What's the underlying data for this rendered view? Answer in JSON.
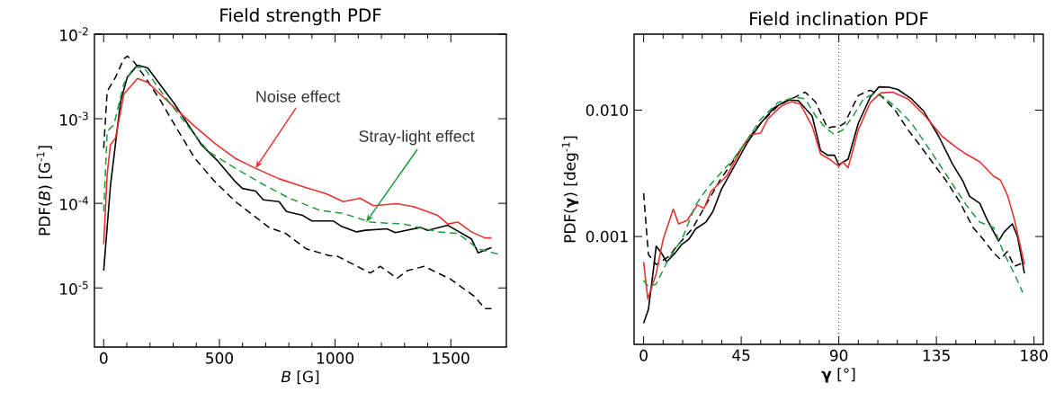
{
  "chart_data": [
    {
      "type": "line",
      "title": "Field strength PDF",
      "xlabel": "*B* [G]",
      "ylabel": "PDF(*B*) [G$^{-1}$]",
      "log": "y",
      "xlim": [
        -40,
        1740
      ],
      "xticks": [
        0,
        500,
        1000,
        1500
      ],
      "ylim": [
        2e-06,
        0.01
      ],
      "yticks": [
        {
          "value": 0.01,
          "label": "10$^{-2}$"
        },
        {
          "value": 0.001,
          "label": "10$^{-3}$"
        },
        {
          "value": 0.0001,
          "label": "10$^{-4}$"
        },
        {
          "value": 1e-05,
          "label": "10$^{-5}$"
        }
      ],
      "annotations": [
        {
          "text": "Noise effect",
          "x": 656,
          "y": 0.00026
        },
        {
          "text": "Stray-light effect",
          "x": 1134,
          "y": 6e-05
        }
      ],
      "series": [
        {
          "color": "#000000",
          "line_style": "solid",
          "x": [
            0,
            29,
            73,
            102,
            146,
            190,
            306,
            423,
            496,
            569,
            600,
            656,
            690,
            758,
            790,
            860,
            900,
            991,
            1030,
            1093,
            1130,
            1224,
            1260,
            1370,
            1400,
            1487,
            1589,
            1618,
            1676
          ],
          "values": [
            1.6e-05,
            0.00016,
            0.0016,
            0.0031,
            0.0043,
            0.004,
            0.0015,
            0.00049,
            0.00031,
            0.00018,
            0.00015,
            0.00014,
            0.00011,
            0.000105,
            8e-05,
            7.2e-05,
            6.2e-05,
            6.2e-05,
            5.3e-05,
            4.6e-05,
            4.8e-05,
            5e-05,
            4.5e-05,
            5.2e-05,
            4.8e-05,
            5.5e-05,
            3.8e-05,
            2.6e-05,
            3e-05
          ]
        },
        {
          "color": "#000000",
          "line_style": "dashed",
          "x": [
            0,
            15,
            51,
            87,
            102,
            131,
            190,
            248,
            306,
            394,
            481,
            569,
            656,
            714,
            787,
            875,
            977,
            1006,
            1152,
            1195,
            1268,
            1312,
            1385,
            1501,
            1603,
            1647,
            1676
          ],
          "values": [
            0.00045,
            0.0021,
            0.0031,
            0.0051,
            0.0055,
            0.0047,
            0.0028,
            0.0016,
            0.00085,
            0.00034,
            0.00018,
            0.000105,
            6.9e-05,
            5.2e-05,
            4.4e-05,
            2.9e-05,
            2.4e-05,
            2.4e-05,
            1.5e-05,
            1.8e-05,
            1.3e-05,
            1.6e-05,
            1.8e-05,
            1.26e-05,
            7.9e-06,
            5.7e-06,
            5.7e-06
          ]
        },
        {
          "color": "#e8312f",
          "line_style": "solid",
          "x": [
            0,
            15,
            29,
            51,
            87,
            146,
            190,
            306,
            394,
            481,
            569,
            656,
            758,
            860,
            962,
            1035,
            1108,
            1166,
            1268,
            1341,
            1443,
            1487,
            1531,
            1589,
            1647,
            1676
          ],
          "values": [
            3.3e-05,
            0.00022,
            0.00049,
            0.00059,
            0.00195,
            0.003,
            0.0027,
            0.00135,
            0.00081,
            0.00051,
            0.00034,
            0.00026,
            0.000195,
            0.000158,
            0.00013,
            0.000105,
            0.000115,
            9.4e-05,
            9.9e-05,
            9.1e-05,
            7.2e-05,
            5.7e-05,
            6e-05,
            4.6e-05,
            3.9e-05,
            3.9e-05
          ]
        },
        {
          "color": "#1e9a3c",
          "line_style": "dashed",
          "x": [
            0,
            15,
            44,
            87,
            131,
            175,
            248,
            335,
            452,
            569,
            685,
            802,
            933,
            1035,
            1152,
            1297,
            1443,
            1531,
            1618,
            1706
          ],
          "values": [
            8e-05,
            0.00071,
            0.00085,
            0.0026,
            0.0041,
            0.004,
            0.0021,
            0.00103,
            0.00041,
            0.00026,
            0.00017,
            0.000115,
            8.3e-05,
            7.6e-05,
            6e-05,
            5.7e-05,
            4.6e-05,
            4.4e-05,
            2.9e-05,
            2.5e-05
          ]
        }
      ]
    },
    {
      "type": "line",
      "title": "Field inclination PDF",
      "xlabel": "**γ** [°]",
      "ylabel": "PDF(**γ**) [deg$^{-1}$]",
      "log": "y",
      "xlim": [
        -4.4,
        184.3
      ],
      "xticks": [
        0,
        45,
        90,
        135,
        180
      ],
      "ylim": [
        0.00014,
        0.04
      ],
      "yticks": [
        {
          "value": 0.01,
          "label": "0.010"
        },
        {
          "value": 0.001,
          "label": "0.001"
        }
      ],
      "ref_lines": [
        {
          "axis": "x",
          "value": 90,
          "line_style": "dotted",
          "color": "#000000"
        }
      ],
      "series": [
        {
          "color": "#000000",
          "line_style": "solid",
          "x": [
            0,
            2.2,
            4.3,
            5.8,
            8.2,
            10.6,
            14.5,
            17.7,
            20.8,
            24,
            28.7,
            31.9,
            35.8,
            41.4,
            47.7,
            54,
            60.3,
            66.6,
            71.4,
            77.7,
            81.6,
            84.8,
            88,
            90,
            94.3,
            99,
            104.5,
            108.5,
            113.2,
            117.2,
            123.5,
            129,
            136.1,
            142.4,
            147.2,
            150.3,
            155,
            158.2,
            163.7,
            166.1,
            170,
            172.4,
            175.6
          ],
          "values": [
            0.000206,
            0.000265,
            0.00051,
            0.00084,
            0.00074,
            0.00063,
            0.00074,
            0.00087,
            0.00095,
            0.00115,
            0.0013,
            0.00157,
            0.00235,
            0.0035,
            0.0055,
            0.0079,
            0.0105,
            0.0121,
            0.0119,
            0.009,
            0.0048,
            0.0044,
            0.0044,
            0.0037,
            0.0041,
            0.0079,
            0.0127,
            0.0153,
            0.0152,
            0.0146,
            0.0123,
            0.0099,
            0.0062,
            0.00375,
            0.00275,
            0.00208,
            0.00183,
            0.00138,
            0.00092,
            0.00108,
            0.00126,
            0.001,
            0.00051
          ]
        },
        {
          "color": "#000000",
          "line_style": "dashed",
          "x": [
            0,
            2.2,
            5.8,
            11.4,
            16.1,
            22.4,
            28.7,
            35,
            41.4,
            47.7,
            54,
            61.9,
            68.2,
            74.5,
            79.3,
            84.8,
            87.2,
            90,
            92.7,
            99,
            104.5,
            109.3,
            115.6,
            121.9,
            126.6,
            133,
            139.3,
            145.6,
            151.9,
            156.6,
            161.4,
            164.5,
            167.7,
            170.9,
            174
          ],
          "values": [
            0.0022,
            0.00072,
            0.0006,
            0.00069,
            0.00087,
            0.00115,
            0.00178,
            0.00275,
            0.004,
            0.0058,
            0.0079,
            0.0108,
            0.0123,
            0.0139,
            0.0116,
            0.0072,
            0.0074,
            0.0074,
            0.0079,
            0.0131,
            0.0144,
            0.0131,
            0.0102,
            0.007,
            0.0055,
            0.0039,
            0.0028,
            0.0019,
            0.00118,
            0.00095,
            0.00074,
            0.00066,
            0.00076,
            0.00058,
            0.00061
          ]
        },
        {
          "color": "#e8312f",
          "line_style": "solid",
          "x": [
            0,
            1.9,
            5.8,
            9,
            13.7,
            16.1,
            20,
            24.8,
            27.9,
            31.1,
            38.2,
            45.3,
            49.3,
            54,
            57.2,
            63.5,
            68.2,
            72.2,
            77.7,
            81.6,
            85.6,
            90,
            91.9,
            94.3,
            99,
            104.5,
            109.3,
            114.8,
            121.9,
            129.8,
            137.7,
            144,
            148.7,
            155,
            161.4,
            164.5,
            167.7,
            170.9,
            175.6
          ],
          "values": [
            0.00063,
            0.00032,
            0.00051,
            0.00095,
            0.00165,
            0.00126,
            0.00134,
            0.00178,
            0.00167,
            0.00228,
            0.003,
            0.005,
            0.0064,
            0.0066,
            0.0085,
            0.0108,
            0.0117,
            0.0112,
            0.0075,
            0.0045,
            0.0041,
            0.0036,
            0.0039,
            0.0035,
            0.007,
            0.0115,
            0.0137,
            0.0139,
            0.0123,
            0.009,
            0.0062,
            0.0051,
            0.0045,
            0.0039,
            0.003,
            0.0028,
            0.00214,
            0.00138,
            0.0006
          ]
        },
        {
          "color": "#1e9a3c",
          "line_style": "dashed",
          "x": [
            0,
            2.2,
            5.8,
            11.4,
            17.7,
            24,
            29.5,
            35,
            41.4,
            47.7,
            54,
            61.9,
            69.8,
            74.5,
            79.3,
            84,
            88,
            91.9,
            96.6,
            101.4,
            106.1,
            110.8,
            117.2,
            123.5,
            129.8,
            136.1,
            142.4,
            148.7,
            155,
            161.4,
            166.1,
            170.9,
            174.8
          ],
          "values": [
            0.00045,
            0.0004,
            0.00042,
            0.00066,
            0.00095,
            0.00178,
            0.00243,
            0.0031,
            0.0041,
            0.0058,
            0.0085,
            0.0115,
            0.0127,
            0.0123,
            0.009,
            0.0072,
            0.0064,
            0.007,
            0.009,
            0.0123,
            0.0135,
            0.0127,
            0.0102,
            0.0079,
            0.0055,
            0.0038,
            0.0026,
            0.00178,
            0.0013,
            0.00118,
            0.00074,
            0.00051,
            0.00036
          ]
        }
      ]
    }
  ]
}
